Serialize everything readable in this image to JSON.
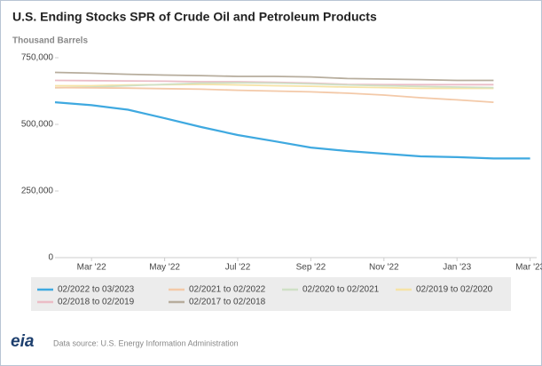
{
  "chart_data": {
    "type": "line",
    "title": "U.S. Ending Stocks SPR of Crude Oil and Petroleum Products",
    "y_label": "Thousand Barrels",
    "categories": [
      null,
      "Mar '22",
      null,
      "May '22",
      null,
      "Jul '22",
      null,
      "Sep '22",
      null,
      "Nov '22",
      null,
      "Jan '23",
      null,
      "Mar '23"
    ],
    "ylim": [
      0,
      750000
    ],
    "yticks": [
      {
        "value": 0,
        "label": "0"
      },
      {
        "value": 250000,
        "label": "250,000"
      },
      {
        "value": 500000,
        "label": "500,000"
      },
      {
        "value": 750000,
        "label": "750,000"
      }
    ],
    "grid": false,
    "legend": "bottom",
    "series": [
      {
        "name": "02/2022 to 03/2023",
        "color": "#3fa9e0",
        "values": [
          583000,
          572000,
          555000,
          523000,
          490000,
          460000,
          437000,
          413000,
          400000,
          390000,
          380000,
          377000,
          372000,
          372000
        ]
      },
      {
        "name": "02/2021 to 02/2022",
        "color": "#f3c9a8",
        "values": [
          638000,
          637000,
          636000,
          634000,
          632000,
          628000,
          625000,
          622000,
          617000,
          610000,
          600000,
          592000,
          583000,
          null
        ]
      },
      {
        "name": "02/2020 to 02/2021",
        "color": "#cfe0c6",
        "values": [
          637000,
          640000,
          645000,
          650000,
          655000,
          656000,
          655000,
          652000,
          648000,
          645000,
          642000,
          640000,
          638000,
          null
        ]
      },
      {
        "name": "02/2019 to 02/2020",
        "color": "#f6e3a6",
        "values": [
          645000,
          645000,
          648000,
          649000,
          650000,
          648000,
          645000,
          643000,
          640000,
          638000,
          635000,
          635000,
          635000,
          null
        ]
      },
      {
        "name": "02/2018 to 02/2019",
        "color": "#ebbcc6",
        "values": [
          665000,
          664000,
          663000,
          662000,
          660000,
          660000,
          658000,
          655000,
          650000,
          649000,
          649000,
          649000,
          649000,
          null
        ]
      },
      {
        "name": "02/2017 to 02/2018",
        "color": "#b7ad9d",
        "values": [
          695000,
          692000,
          688000,
          685000,
          683000,
          680000,
          680000,
          678000,
          672000,
          670000,
          668000,
          665000,
          665000,
          null
        ]
      }
    ],
    "logo": "eia",
    "source": "Data source: U.S. Energy Information Administration"
  }
}
